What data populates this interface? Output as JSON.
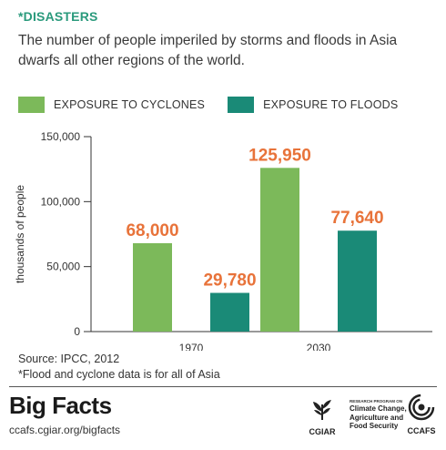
{
  "header": {
    "kicker": "*DISASTERS",
    "subtitle": "The number of people imperiled by storms and floods in Asia dwarfs all other regions of the world."
  },
  "colors": {
    "cyclones": "#7cb95a",
    "floods": "#1a8a77",
    "value_label": "#e8733a",
    "kicker": "#2a9a7c"
  },
  "legend": [
    {
      "label": "EXPOSURE TO CYCLONES",
      "color": "#7cb95a"
    },
    {
      "label": "EXPOSURE TO FLOODS",
      "color": "#1a8a77"
    }
  ],
  "chart_data": {
    "type": "bar",
    "categories": [
      "1970",
      "2030"
    ],
    "series": [
      {
        "name": "EXPOSURE TO CYCLONES",
        "values": [
          68000,
          125950
        ],
        "labels": [
          "68,000",
          "125,950"
        ]
      },
      {
        "name": "EXPOSURE TO FLOODS",
        "values": [
          29780,
          77640
        ],
        "labels": [
          "29,780",
          "77,640"
        ]
      }
    ],
    "ylabel": "thousands of people",
    "ylim": [
      0,
      150000
    ],
    "yticks": [
      0,
      50000,
      100000,
      150000
    ],
    "ytick_labels": [
      "0",
      "50,000",
      "100,000",
      "150,000"
    ],
    "grid": false,
    "legend_position": "top-left"
  },
  "notes": {
    "source": "Source: IPCC, 2012",
    "footnote": "*Flood and cyclone data is for all of Asia"
  },
  "footer": {
    "brand_title": "Big Facts",
    "brand_url": "ccafs.cgiar.org/bigfacts",
    "cgiar_label": "CGIAR",
    "program_kicker": "RESEARCH PROGRAM ON",
    "program_name": "Climate Change, Agriculture and Food Security",
    "ccafs_label": "CCAFS"
  }
}
